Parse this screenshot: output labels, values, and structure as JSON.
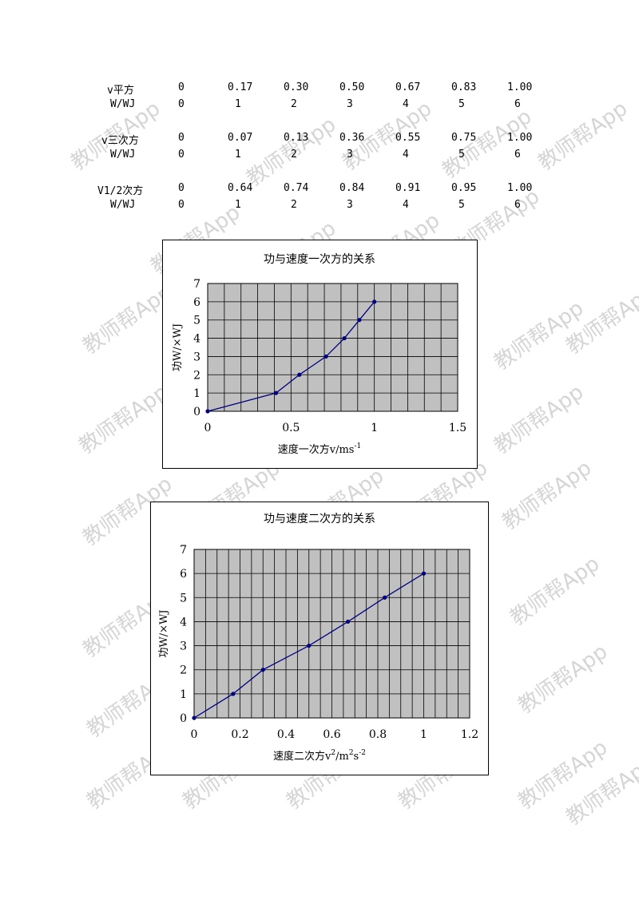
{
  "tables": [
    {
      "header": "v平方",
      "header_values": [
        "0",
        "0.17",
        "0.30",
        "0.50",
        "0.67",
        "0.83",
        "1.00"
      ],
      "sub": "W/WJ",
      "sub_values": [
        "0",
        "1",
        "2",
        "3",
        "4",
        "5",
        "6"
      ]
    },
    {
      "header": "v三次方",
      "header_values": [
        "0",
        "0.07",
        "0.13",
        "0.36",
        "0.55",
        "0.75",
        "1.00"
      ],
      "sub": "W/WJ",
      "sub_values": [
        "0",
        "1",
        "2",
        "3",
        "4",
        "5",
        "6"
      ]
    },
    {
      "header": "V1/2次方",
      "header_values": [
        "0",
        "0.64",
        "0.74",
        "0.84",
        "0.91",
        "0.95",
        "1.00"
      ],
      "sub": "W/WJ",
      "sub_values": [
        "0",
        "1",
        "2",
        "3",
        "4",
        "5",
        "6"
      ]
    }
  ],
  "watermark": "教师帮App",
  "chart_data": [
    {
      "type": "line",
      "title": "功与速度一次方的关系",
      "xlabel": "速度一次方v/ms",
      "xlabel_sup": "-1",
      "ylabel": "功W/×WJ",
      "xlim": [
        0,
        1.5
      ],
      "ylim": [
        0,
        7
      ],
      "xticks": [
        "0",
        "0.5",
        "1",
        "1.5"
      ],
      "xtick_values": [
        0,
        0.5,
        1,
        1.5
      ],
      "yticks": [
        "0",
        "1",
        "2",
        "3",
        "4",
        "5",
        "6",
        "7"
      ],
      "grid": true,
      "series": [
        {
          "x": [
            0,
            0.41,
            0.55,
            0.71,
            0.82,
            0.91,
            1.0
          ],
          "y": [
            0,
            1,
            2,
            3,
            4,
            5,
            6
          ]
        }
      ],
      "color": "#000080",
      "plot_bg": "#c0c0c0"
    },
    {
      "type": "line",
      "title": "功与速度二次方的关系",
      "xlabel": "速度二次方v",
      "xlabel_sup": "2",
      "xlabel_mid": "/m",
      "xlabel_sup2": "2",
      "xlabel_tail": "s",
      "xlabel_sup3": "-2",
      "ylabel": "功W/×WJ",
      "xlim": [
        0,
        1.2
      ],
      "ylim": [
        0,
        7
      ],
      "xticks": [
        "0",
        "0.2",
        "0.4",
        "0.6",
        "0.8",
        "1",
        "1.2"
      ],
      "xtick_values": [
        0,
        0.2,
        0.4,
        0.6,
        0.8,
        1,
        1.2
      ],
      "yticks": [
        "0",
        "1",
        "2",
        "3",
        "4",
        "5",
        "6",
        "7"
      ],
      "grid": true,
      "series": [
        {
          "x": [
            0,
            0.17,
            0.3,
            0.5,
            0.67,
            0.83,
            1.0
          ],
          "y": [
            0,
            1,
            2,
            3,
            4,
            5,
            6
          ]
        }
      ],
      "color": "#000080",
      "plot_bg": "#c0c0c0"
    }
  ]
}
